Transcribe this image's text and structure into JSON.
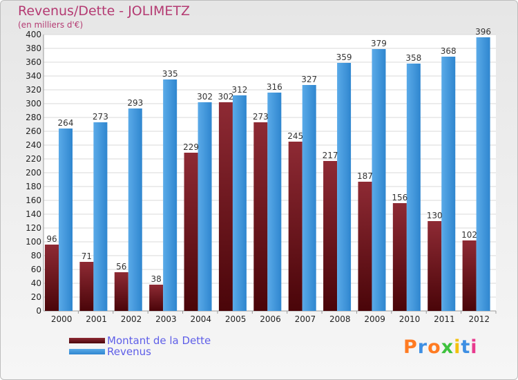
{
  "title": "Revenus/Dette - JOLIMETZ",
  "subtitle": "(en milliers d'€)",
  "brand": {
    "letters": [
      "P",
      "r",
      "o",
      "x",
      "i",
      "t",
      "i"
    ],
    "colors": [
      "#ff7b22",
      "#3e8fe3",
      "#ff7b22",
      "#3ec23e",
      "#f3c00d",
      "#3e8fe3",
      "#e83a8e"
    ]
  },
  "colors": {
    "dette": "#7a1520",
    "revenus": "#3b94dc",
    "title": "#b43a72",
    "legend_text": "#5e5ee8"
  },
  "chart_data": {
    "type": "bar",
    "title": "Revenus/Dette - JOLIMETZ",
    "ylabel": "(en milliers d'€)",
    "xlabel": "",
    "ylim": [
      0,
      400
    ],
    "ytick_step": 20,
    "categories": [
      "2000",
      "2001",
      "2002",
      "2003",
      "2004",
      "2005",
      "2006",
      "2007",
      "2008",
      "2009",
      "2010",
      "2011",
      "2012"
    ],
    "series": [
      {
        "name": "Montant de la Dette",
        "color": "#7a1520",
        "values": [
          96,
          71,
          56,
          38,
          229,
          302,
          273,
          245,
          217,
          187,
          156,
          130,
          102
        ]
      },
      {
        "name": "Revenus",
        "color": "#3b94dc",
        "values": [
          264,
          273,
          293,
          335,
          302,
          312,
          316,
          327,
          359,
          379,
          358,
          368,
          396
        ]
      }
    ],
    "legend_position": "bottom-left",
    "grid": true
  }
}
